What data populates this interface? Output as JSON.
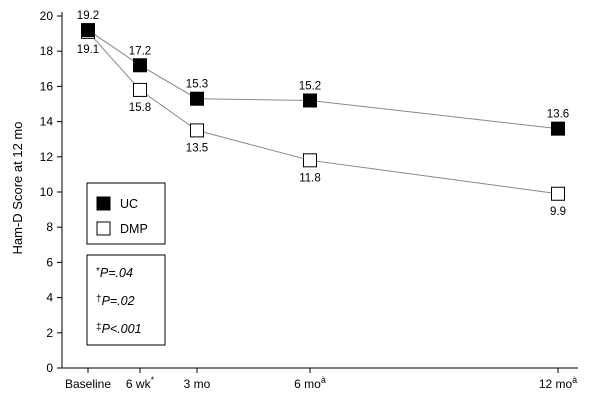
{
  "chart_data": {
    "type": "line",
    "title": "",
    "xlabel": "",
    "ylabel": "Ham-D Score at 12 mo",
    "ylim": [
      0,
      20
    ],
    "yticks": [
      0,
      2,
      4,
      6,
      8,
      10,
      12,
      14,
      16,
      18,
      20
    ],
    "categories": [
      "Baseline",
      "6 wk",
      "3 mo",
      "6 mo",
      "12 mo"
    ],
    "category_months": [
      0,
      1.5,
      3,
      6,
      12
    ],
    "category_markers": [
      "",
      "*",
      "",
      "à",
      "à"
    ],
    "series": [
      {
        "name": "UC",
        "marker": "filled-square",
        "color": "#000000",
        "line_color": "#888888",
        "values": [
          19.2,
          17.2,
          15.3,
          15.2,
          13.6
        ]
      },
      {
        "name": "DMP",
        "marker": "open-square",
        "color": "#ffffff",
        "line_color": "#888888",
        "values": [
          19.1,
          15.8,
          13.5,
          11.8,
          9.9
        ]
      }
    ],
    "legend": {
      "position": "lower-left",
      "entries": [
        "UC",
        "DMP"
      ]
    },
    "annotations": [
      {
        "symbol": "*",
        "text": "P=.04"
      },
      {
        "symbol": "†",
        "text": "P=.02"
      },
      {
        "symbol": "‡",
        "text": "P<.001"
      }
    ],
    "grid": false
  }
}
